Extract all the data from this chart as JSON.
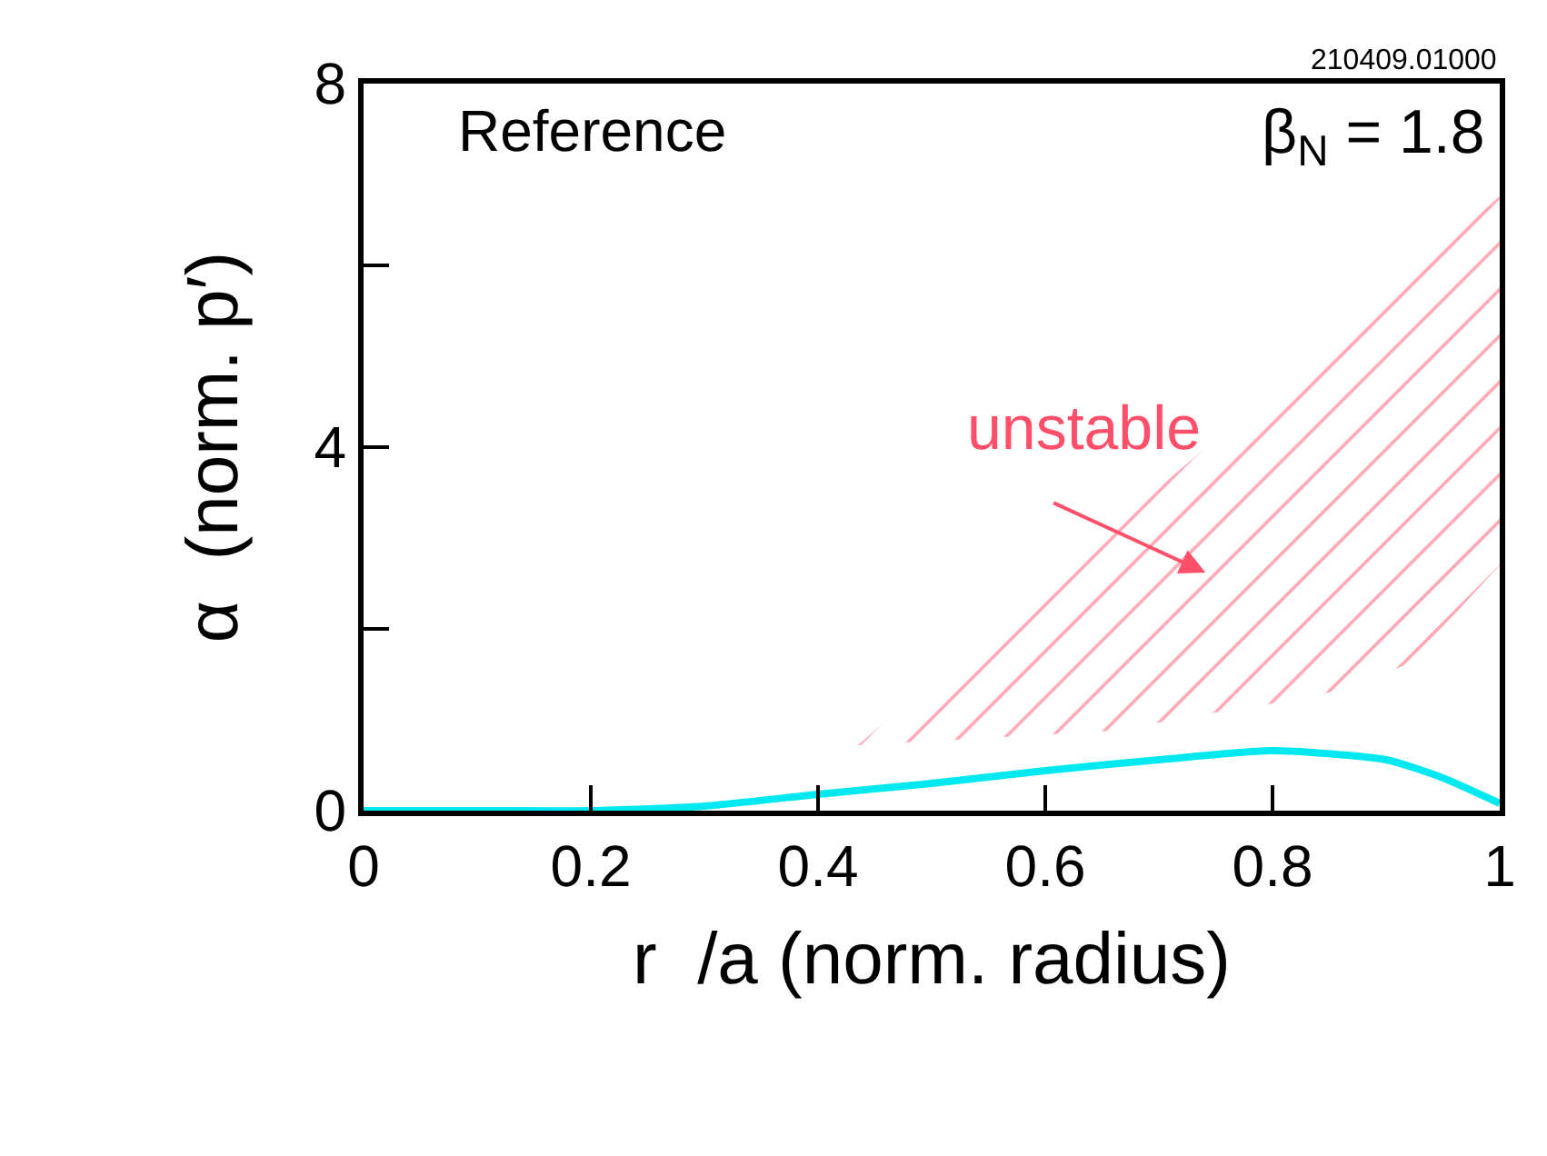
{
  "chart_data": {
    "type": "line",
    "xlabel": "r  /a (norm. radius)",
    "ylabel": "α  (norm. p′)",
    "annotations": [
      "Reference",
      "β$_{N}$ = 1.8",
      "210409.01000",
      "unstable"
    ],
    "series": [
      {
        "color": "#00e8f0",
        "x": [
          0,
          0.1,
          0.2,
          0.3,
          0.4,
          0.5,
          0.6,
          0.7,
          0.8,
          0.9,
          0.95,
          1.0
        ],
        "values": [
          0,
          0,
          0,
          0.05,
          0.18,
          0.3,
          0.44,
          0.56,
          0.66,
          0.56,
          0.36,
          0.08
        ]
      },
      {
        "color": "#ff4f6a",
        "x": [
          0.435,
          0.66,
          0.74,
          0.82,
          0.87,
          0.92,
          1.0
        ],
        "values": [
          null,
          null,
          null,
          null,
          null,
          null,
          null
        ],
        "upper": [
          0.72,
          3.13,
          3.98,
          4.84,
          5.37,
          5.9,
          6.76
        ],
        "lower": [
          0.72,
          0.88,
          1.06,
          1.22,
          1.36,
          1.62,
          2.7
        ]
      }
    ],
    "xlim": [
      0,
      1
    ],
    "xticks": [
      0,
      0.2,
      0.4,
      0.6,
      0.8,
      1
    ],
    "ylim": [
      0,
      8
    ],
    "yticks": [
      0,
      {
        "value": 2,
        "label": null
      },
      4,
      {
        "value": 6,
        "label": null
      },
      8
    ],
    "marker": "none",
    "line_style": "solid"
  }
}
